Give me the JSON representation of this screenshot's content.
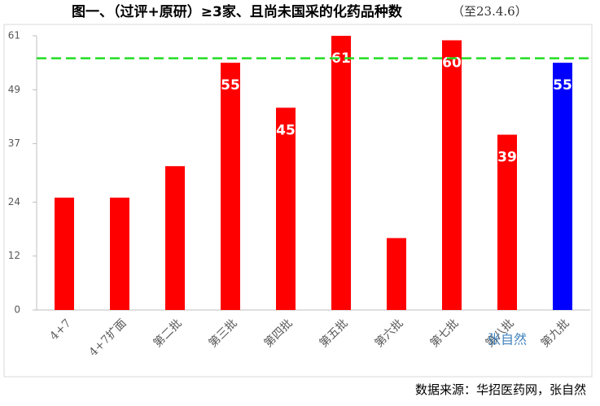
{
  "chart_data": {
    "type": "bar",
    "title": "图一、（过评+原研）≥3家、且尚未国采的化药品种数",
    "title_note": "（至23.4.6）",
    "categories": [
      "4+7",
      "4+7扩面",
      "第二批",
      "第三批",
      "第四批",
      "第五批",
      "第六批",
      "第七批",
      "第八批",
      "第九批"
    ],
    "values": [
      25,
      25,
      32,
      55,
      45,
      61,
      16,
      60,
      39,
      55
    ],
    "value_labels": [
      null,
      null,
      null,
      "55",
      "45",
      "61",
      null,
      "60",
      "39",
      "55"
    ],
    "colors": [
      "#ff0000",
      "#ff0000",
      "#ff0000",
      "#ff0000",
      "#ff0000",
      "#ff0000",
      "#ff0000",
      "#ff0000",
      "#ff0000",
      "#0000ff"
    ],
    "ylim": [
      0,
      61
    ],
    "yticks": [
      0,
      12,
      24,
      37,
      49,
      61
    ],
    "reference_line": 56,
    "reference_color": "#22dd22",
    "watermark": "张自然",
    "source": "数据来源：华招医药网，张自然"
  }
}
